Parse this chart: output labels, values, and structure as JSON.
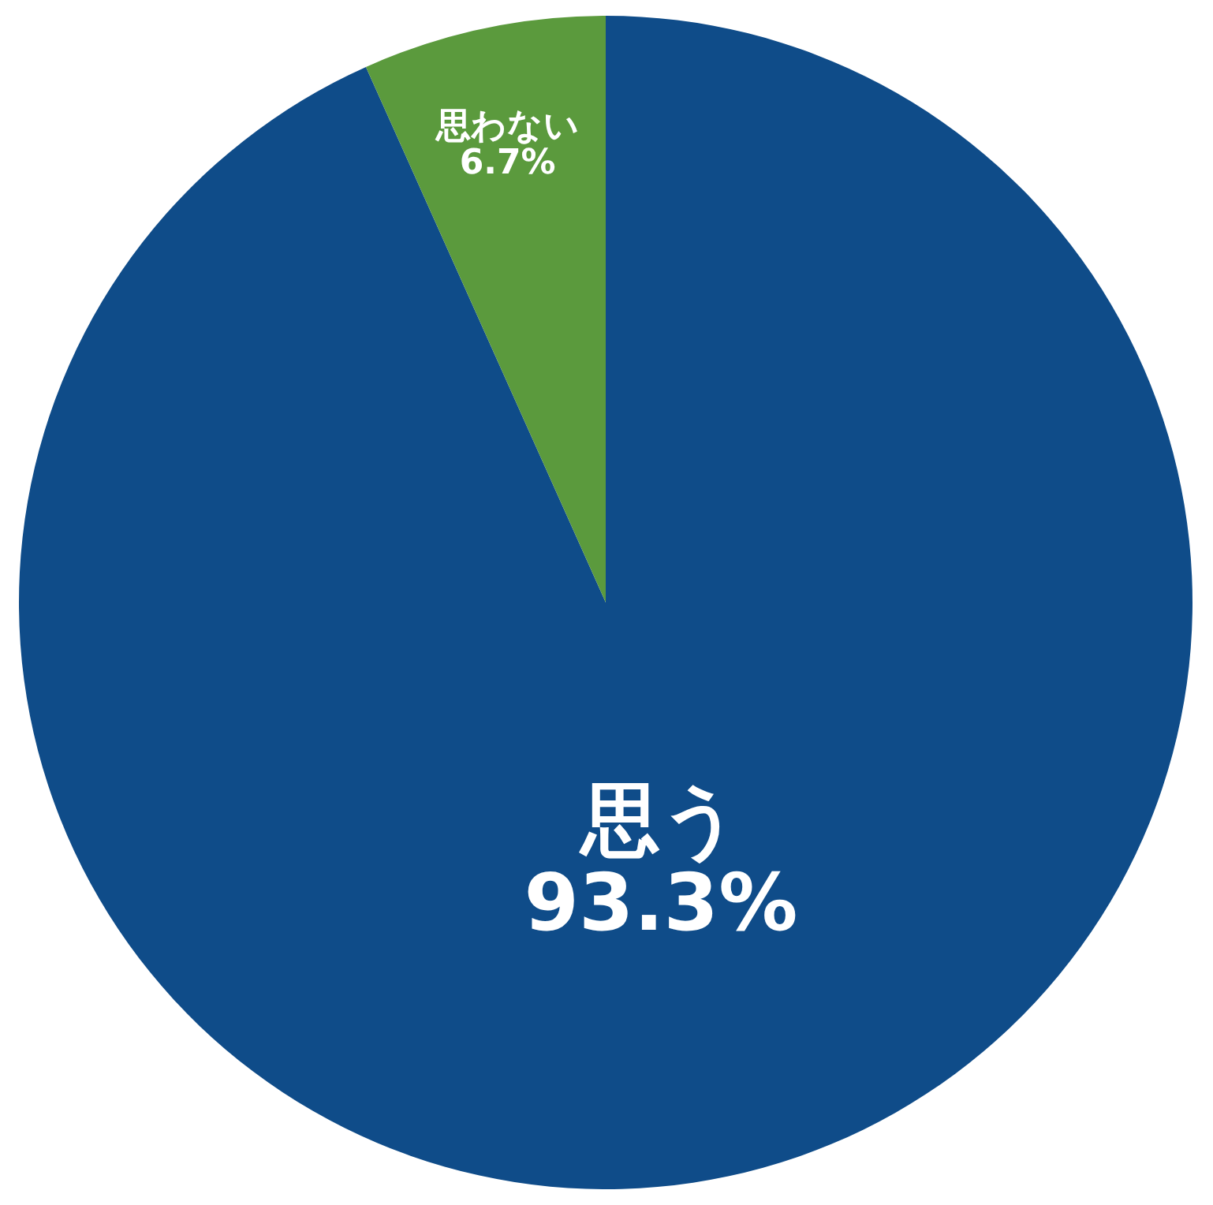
{
  "chart_data": {
    "type": "pie",
    "categories": [
      "思う",
      "思わない"
    ],
    "values": [
      93.3,
      6.7
    ],
    "value_labels": [
      "93.3%",
      "6.7%"
    ],
    "colors": [
      "#0f4c89",
      "#5b9a3d"
    ]
  }
}
